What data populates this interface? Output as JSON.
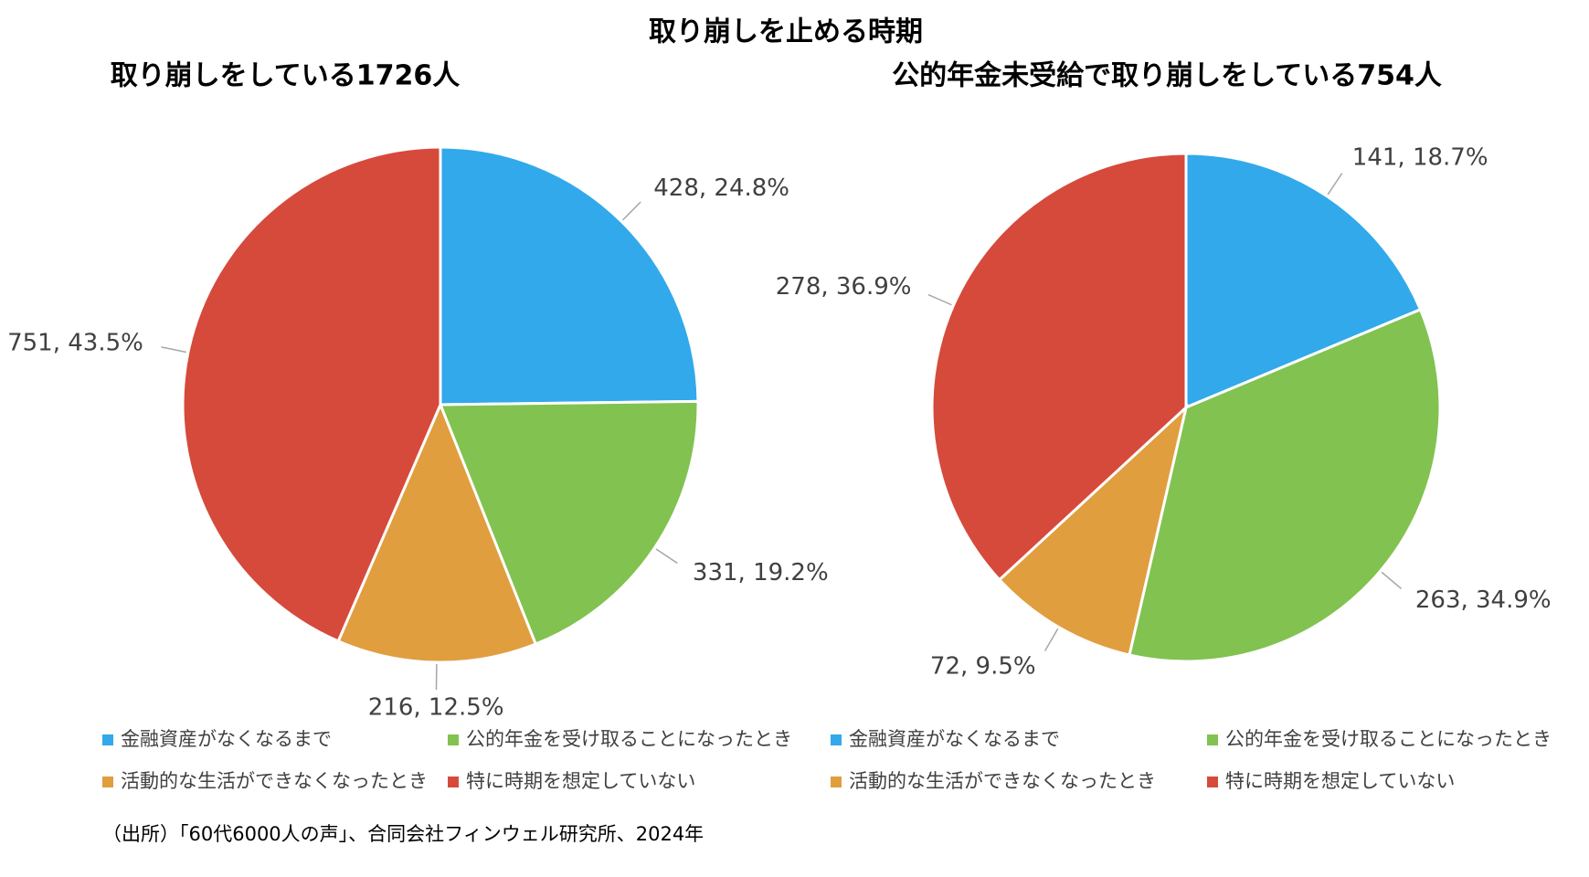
{
  "title": "取り崩しを止める時期",
  "source": "（出所）「60代6000人の声」、合同会社フィンウェル研究所、2024年",
  "chart_data": [
    {
      "type": "pie",
      "title": "取り崩しをしている1726人",
      "categories": [
        "金融資産がなくなるまで",
        "公的年金を受け取ることになったとき",
        "活動的な生活ができなくなったとき",
        "特に時期を想定していない"
      ],
      "values": [
        428,
        331,
        216,
        751
      ],
      "value_labels": [
        "428, 24.8%",
        "331, 19.2%",
        "216, 12.5%",
        "751, 43.5%"
      ],
      "colors": [
        "#32a9eb",
        "#82c250",
        "#e09e3f",
        "#d64a3b"
      ]
    },
    {
      "type": "pie",
      "title": "公的年金未受給で取り崩しをしている754人",
      "categories": [
        "金融資産がなくなるまで",
        "公的年金を受け取ることになったとき",
        "活動的な生活ができなくなったとき",
        "特に時期を想定していない"
      ],
      "values": [
        141,
        263,
        72,
        278
      ],
      "value_labels": [
        "141, 18.7%",
        "263, 34.9%",
        "72, 9.5%",
        "278, 36.9%"
      ],
      "colors": [
        "#32a9eb",
        "#82c250",
        "#e09e3f",
        "#d64a3b"
      ]
    }
  ]
}
